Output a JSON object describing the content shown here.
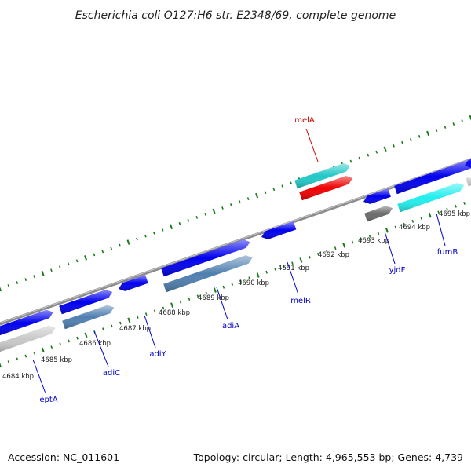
{
  "title": "Escherichia coli O127:H6 str. E2348/69, complete genome",
  "footer": {
    "accession": "Accession: NC_011601",
    "summary": "Topology: circular; Length: 4,965,553 bp; Genes: 4,739"
  },
  "colors": {
    "backbone": "#8c8c8c",
    "tick_major": "#1a7a1a",
    "gene_blue": "#0000ee",
    "gene_steelblue": "#4f7fb0",
    "gene_cyan": "#22c8c8",
    "gene_lightcyan": "#22eeee",
    "gene_red": "#ee0000",
    "gene_gray": "#c8c8c8",
    "gene_darkgray": "#6a6a6a",
    "label_blue": "#0000cc",
    "label_red": "#cc0000"
  },
  "tick_labels": [
    "4684 kbp",
    "4685 kbp",
    "4686 kbp",
    "4687 kbp",
    "4688 kbp",
    "4689 kbp",
    "4690 kbp",
    "4691 kbp",
    "4692 kbp",
    "4693 kbp",
    "4694 kbp",
    "4695 kbp"
  ],
  "gene_labels": [
    "eptA",
    "adiC",
    "adiY",
    "adiA",
    "melR",
    "melA",
    "yjdF",
    "fumB"
  ]
}
